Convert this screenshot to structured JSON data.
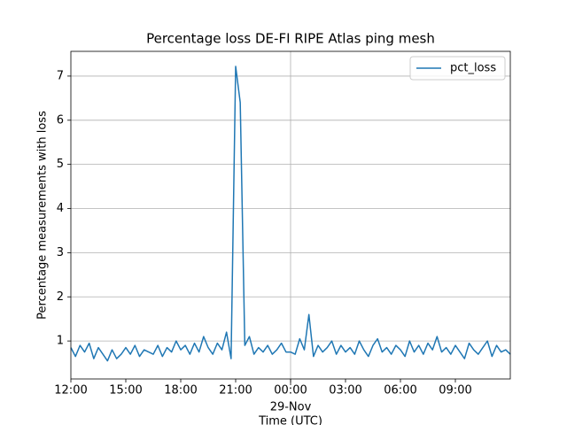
{
  "chart_data": {
    "type": "line",
    "title": "Percentage loss DE-FI RIPE Atlas ping mesh",
    "xlabel": "Time (UTC)",
    "ylabel": "Percentage measurements with loss",
    "x": [
      0,
      0.25,
      0.5,
      0.75,
      1,
      1.25,
      1.5,
      1.75,
      2,
      2.25,
      2.5,
      2.75,
      3,
      3.25,
      3.5,
      3.75,
      4,
      4.25,
      4.5,
      4.75,
      5,
      5.25,
      5.5,
      5.75,
      6,
      6.25,
      6.5,
      6.75,
      7,
      7.25,
      7.5,
      7.75,
      8,
      8.25,
      8.5,
      8.75,
      9,
      9.25,
      9.5,
      9.75,
      10,
      10.25,
      10.5,
      10.75,
      11,
      11.25,
      11.5,
      11.75,
      12,
      12.25,
      12.5,
      12.75,
      13,
      13.25,
      13.5,
      13.75,
      14,
      14.25,
      14.5,
      14.75,
      15,
      15.25,
      15.5,
      15.75,
      16,
      16.25,
      16.5,
      16.75,
      17,
      17.25,
      17.5,
      17.75,
      18,
      18.25,
      18.5,
      18.75,
      19,
      19.25,
      19.5,
      19.75,
      20,
      20.25,
      20.5,
      20.75,
      21,
      21.25,
      21.5,
      21.75,
      22,
      22.25,
      22.5,
      22.75,
      23,
      23.25,
      23.5,
      23.75,
      24
    ],
    "series": [
      {
        "name": "pct_loss",
        "color": "#1f77b4",
        "values": [
          0.85,
          0.65,
          0.9,
          0.75,
          0.95,
          0.6,
          0.85,
          0.7,
          0.55,
          0.8,
          0.6,
          0.7,
          0.85,
          0.7,
          0.9,
          0.65,
          0.8,
          0.75,
          0.7,
          0.9,
          0.65,
          0.85,
          0.75,
          1.0,
          0.8,
          0.9,
          0.7,
          0.95,
          0.75,
          1.1,
          0.85,
          0.7,
          0.95,
          0.8,
          1.2,
          0.6,
          7.22,
          6.4,
          0.9,
          1.1,
          0.7,
          0.85,
          0.75,
          0.9,
          0.7,
          0.8,
          0.95,
          0.75,
          0.75,
          0.7,
          1.05,
          0.8,
          1.6,
          0.65,
          0.9,
          0.75,
          0.85,
          1.0,
          0.7,
          0.9,
          0.75,
          0.85,
          0.7,
          1.0,
          0.8,
          0.65,
          0.9,
          1.05,
          0.75,
          0.85,
          0.7,
          0.9,
          0.8,
          0.65,
          1.0,
          0.75,
          0.9,
          0.7,
          0.95,
          0.8,
          1.1,
          0.75,
          0.85,
          0.7,
          0.9,
          0.75,
          0.6,
          0.95,
          0.8,
          0.7,
          0.85,
          1.0,
          0.65,
          0.9,
          0.75,
          0.8,
          0.7
        ]
      }
    ],
    "xlim": [
      0,
      24
    ],
    "xticks": [
      {
        "value": 0,
        "label": "12:00"
      },
      {
        "value": 3,
        "label": "15:00"
      },
      {
        "value": 6,
        "label": "18:00"
      },
      {
        "value": 9,
        "label": "21:00"
      },
      {
        "value": 12,
        "label": "00:00"
      },
      {
        "value": 15,
        "label": "03:00"
      },
      {
        "value": 18,
        "label": "06:00"
      },
      {
        "value": 21,
        "label": "09:00"
      }
    ],
    "x_major": {
      "value": 12,
      "label": "29-Nov"
    },
    "ylim": [
      0.14,
      7.56
    ],
    "yticks": [
      1,
      2,
      3,
      4,
      5,
      6,
      7
    ],
    "grid": true,
    "legend": "upper right"
  }
}
